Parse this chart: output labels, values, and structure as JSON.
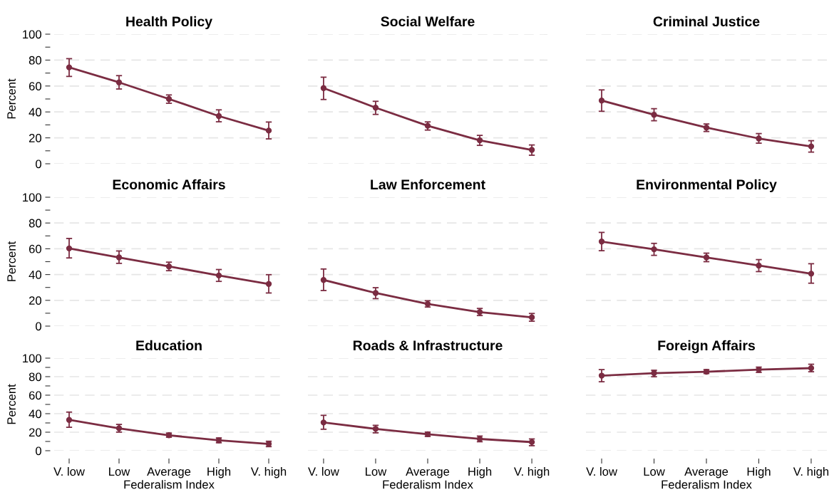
{
  "chart_data": [
    {
      "type": "line",
      "title": "Health Policy",
      "ylabel": "Percent",
      "categories": [
        "V. low",
        "Low",
        "Average",
        "High",
        "V. high"
      ],
      "tick_labels": "y",
      "grid": "y",
      "marker": "circle",
      "line_style": "solid",
      "ylim": [
        0,
        100
      ],
      "yticks": [
        0,
        {
          "value": 10,
          "label": null
        },
        20,
        {
          "value": 30,
          "label": null
        },
        40,
        {
          "value": 50,
          "label": null
        },
        60,
        {
          "value": 70,
          "label": null
        },
        80,
        {
          "value": 90,
          "label": null
        },
        100
      ],
      "series": [
        {
          "color": "#7b2c42",
          "values": [
            74.4,
            62.8,
            50.0,
            36.8,
            25.6
          ],
          "errors": [
            [
              67.4,
              81.1
            ],
            [
              57.7,
              68.0
            ],
            [
              46.7,
              53.1
            ],
            [
              32.4,
              41.6
            ],
            [
              19.2,
              32.2
            ]
          ]
        }
      ]
    },
    {
      "type": "line",
      "title": "Social Welfare",
      "categories": [
        "V. low",
        "Low",
        "Average",
        "High",
        "V. high"
      ],
      "tick_labels": false,
      "grid": "y",
      "marker": "circle",
      "line_style": "solid",
      "ylim": [
        0,
        100
      ],
      "yticks": [
        0,
        20,
        40,
        60,
        80,
        100
      ],
      "series": [
        {
          "color": "#7b2c42",
          "values": [
            58.4,
            43.3,
            29.3,
            18.1,
            10.7
          ],
          "errors": [
            [
              49.6,
              66.8
            ],
            [
              38.1,
              48.2
            ],
            [
              26.0,
              32.3
            ],
            [
              14.2,
              21.9
            ],
            [
              6.6,
              14.5
            ]
          ]
        }
      ]
    },
    {
      "type": "line",
      "title": "Criminal Justice",
      "categories": [
        "V. low",
        "Low",
        "Average",
        "High",
        "V. high"
      ],
      "tick_labels": false,
      "grid": "y",
      "marker": "circle",
      "line_style": "solid",
      "ylim": [
        0,
        100
      ],
      "yticks": [
        0,
        20,
        40,
        60,
        80,
        100
      ],
      "series": [
        {
          "color": "#7b2c42",
          "values": [
            48.8,
            37.8,
            27.9,
            19.5,
            13.4
          ],
          "errors": [
            [
              40.5,
              57.0
            ],
            [
              33.2,
              42.5
            ],
            [
              24.9,
              30.7
            ],
            [
              15.9,
              23.3
            ],
            [
              9.0,
              17.8
            ]
          ]
        }
      ]
    },
    {
      "type": "line",
      "title": "Economic Affairs",
      "ylabel": "Percent",
      "categories": [
        "V. low",
        "Low",
        "Average",
        "High",
        "V. high"
      ],
      "tick_labels": "y",
      "grid": "y",
      "marker": "circle",
      "line_style": "solid",
      "ylim": [
        0,
        100
      ],
      "yticks": [
        0,
        {
          "value": 10,
          "label": null
        },
        20,
        {
          "value": 30,
          "label": null
        },
        40,
        {
          "value": 50,
          "label": null
        },
        60,
        {
          "value": 70,
          "label": null
        },
        80,
        {
          "value": 90,
          "label": null
        },
        100
      ],
      "series": [
        {
          "color": "#7b2c42",
          "values": [
            60.3,
            53.3,
            46.3,
            39.3,
            32.7
          ],
          "errors": [
            [
              52.9,
              68.0
            ],
            [
              48.7,
              58.3
            ],
            [
              43.0,
              49.6
            ],
            [
              34.7,
              43.9
            ],
            [
              25.7,
              39.9
            ]
          ]
        }
      ]
    },
    {
      "type": "line",
      "title": "Law Enforcement",
      "categories": [
        "V. low",
        "Low",
        "Average",
        "High",
        "V. high"
      ],
      "tick_labels": false,
      "grid": "y",
      "marker": "circle",
      "line_style": "solid",
      "ylim": [
        0,
        100
      ],
      "yticks": [
        0,
        20,
        40,
        60,
        80,
        100
      ],
      "series": [
        {
          "color": "#7b2c42",
          "values": [
            35.8,
            25.7,
            17.2,
            10.9,
            6.8
          ],
          "errors": [
            [
              27.6,
              44.3
            ],
            [
              21.3,
              29.8
            ],
            [
              14.8,
              19.7
            ],
            [
              8.2,
              13.7
            ],
            [
              3.8,
              9.8
            ]
          ]
        }
      ]
    },
    {
      "type": "line",
      "title": "Environmental Policy",
      "categories": [
        "V. low",
        "Low",
        "Average",
        "High",
        "V. high"
      ],
      "tick_labels": false,
      "grid": "y",
      "marker": "circle",
      "line_style": "solid",
      "ylim": [
        0,
        100
      ],
      "yticks": [
        0,
        20,
        40,
        60,
        80,
        100
      ],
      "series": [
        {
          "color": "#7b2c42",
          "values": [
            65.6,
            59.6,
            53.3,
            47.0,
            40.7
          ],
          "errors": [
            [
              58.5,
              72.7
            ],
            [
              54.9,
              64.2
            ],
            [
              50.0,
              56.6
            ],
            [
              42.3,
              51.6
            ],
            [
              33.3,
              48.4
            ]
          ]
        }
      ]
    },
    {
      "type": "line",
      "title": "Education",
      "ylabel": "Percent",
      "xlabel": "Federalism Index",
      "categories": [
        "V. low",
        "Low",
        "Average",
        "High",
        "V. high"
      ],
      "grid": "y",
      "marker": "circle",
      "line_style": "solid",
      "ylim": [
        0,
        100
      ],
      "yticks": [
        0,
        {
          "value": 10,
          "label": null
        },
        20,
        {
          "value": 30,
          "label": null
        },
        40,
        {
          "value": 50,
          "label": null
        },
        60,
        {
          "value": 70,
          "label": null
        },
        80,
        {
          "value": 90,
          "label": null
        },
        100
      ],
      "series": [
        {
          "color": "#7b2c42",
          "values": [
            33.3,
            24.2,
            16.7,
            11.2,
            7.3
          ],
          "errors": [
            [
              25.3,
              41.7
            ],
            [
              20.1,
              28.4
            ],
            [
              14.6,
              19.0
            ],
            [
              8.6,
              13.8
            ],
            [
              4.4,
              10.2
            ]
          ]
        }
      ]
    },
    {
      "type": "line",
      "title": "Roads & Infrastructure",
      "xlabel": "Federalism Index",
      "categories": [
        "V. low",
        "Low",
        "Average",
        "High",
        "V. high"
      ],
      "tick_labels": "x",
      "grid": "y",
      "marker": "circle",
      "line_style": "solid",
      "ylim": [
        0,
        100
      ],
      "yticks": [
        0,
        20,
        40,
        60,
        80,
        100
      ],
      "series": [
        {
          "color": "#7b2c42",
          "values": [
            30.5,
            23.6,
            17.8,
            12.7,
            9.3
          ],
          "errors": [
            [
              23.2,
              38.2
            ],
            [
              19.3,
              27.4
            ],
            [
              15.4,
              20.1
            ],
            [
              9.7,
              15.8
            ],
            [
              5.4,
              12.7
            ]
          ]
        }
      ]
    },
    {
      "type": "line",
      "title": "Foreign Affairs",
      "xlabel": "Federalism Index",
      "categories": [
        "V. low",
        "Low",
        "Average",
        "High",
        "V. high"
      ],
      "tick_labels": "x",
      "grid": "y",
      "marker": "circle",
      "line_style": "solid",
      "ylim": [
        0,
        100
      ],
      "yticks": [
        0,
        20,
        40,
        60,
        80,
        100
      ],
      "series": [
        {
          "color": "#7b2c42",
          "values": [
            81.1,
            83.8,
            85.3,
            87.6,
            89.2
          ],
          "errors": [
            [
              74.5,
              87.6
            ],
            [
              79.9,
              86.9
            ],
            [
              83.4,
              87.6
            ],
            [
              84.6,
              90.3
            ],
            [
              85.3,
              93.4
            ]
          ]
        }
      ]
    }
  ]
}
